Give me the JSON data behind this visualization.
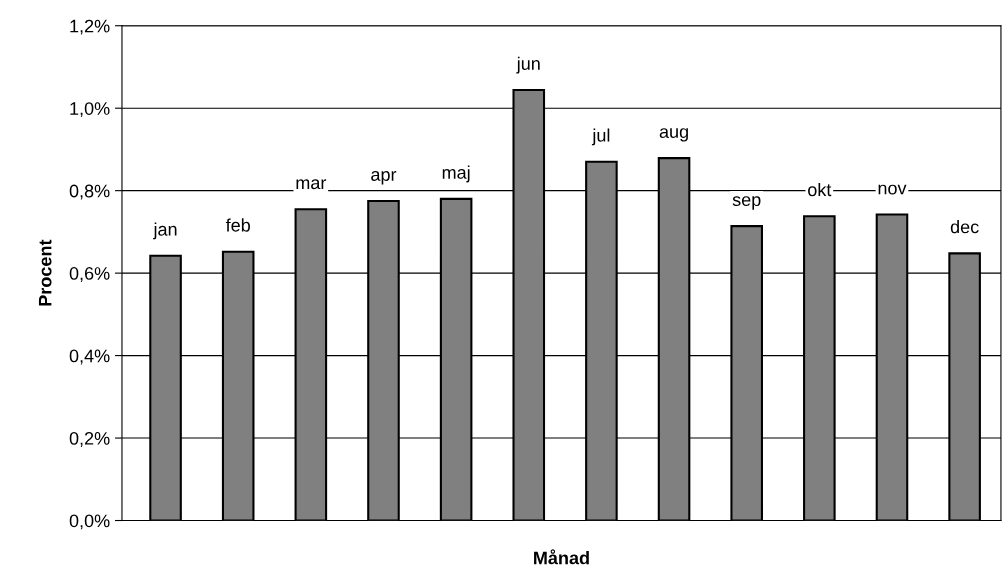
{
  "chart_data": {
    "type": "bar",
    "xlabel": "Månad",
    "ylabel": "Procent",
    "categories": [
      "jan",
      "feb",
      "mar",
      "apr",
      "maj",
      "jun",
      "jul",
      "aug",
      "sep",
      "okt",
      "nov",
      "dec"
    ],
    "values": [
      0.642,
      0.652,
      0.755,
      0.775,
      0.78,
      1.044,
      0.87,
      0.879,
      0.714,
      0.738,
      0.742,
      0.648
    ],
    "color": "#808080",
    "ylim": [
      0,
      1.2
    ],
    "yticks": [
      {
        "value": 0,
        "label": "0,0%"
      },
      {
        "value": 0.2,
        "label": "0,2%"
      },
      {
        "value": 0.4,
        "label": "0,4%"
      },
      {
        "value": 0.6,
        "label": "0,6%"
      },
      {
        "value": 0.8,
        "label": "0,8%"
      },
      {
        "value": 1.0,
        "label": "1,0%"
      },
      {
        "value": 1.2,
        "label": "1,2%"
      }
    ],
    "grid": "y",
    "tick_labels": "y"
  }
}
